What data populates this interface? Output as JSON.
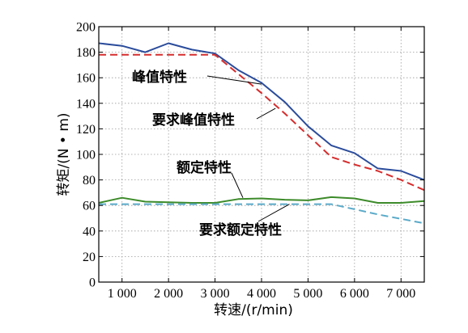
{
  "chart_data": {
    "type": "line",
    "title": "",
    "xlabel": "转速/(r/min)",
    "ylabel": "转矩/(N • m)",
    "xlim": [
      500,
      7500
    ],
    "ylim": [
      0,
      200
    ],
    "x_ticks": [
      1000,
      2000,
      3000,
      4000,
      5000,
      6000,
      7000
    ],
    "x_tick_labels": [
      "1 000",
      "2 000",
      "3 000",
      "4 000",
      "5 000",
      "6 000",
      "7 000"
    ],
    "y_ticks": [
      0,
      20,
      40,
      60,
      80,
      100,
      120,
      140,
      160,
      180,
      200
    ],
    "y_tick_labels": [
      "0",
      "20",
      "40",
      "60",
      "80",
      "100",
      "120",
      "140",
      "160",
      "180",
      "200"
    ],
    "grid": true,
    "series": [
      {
        "name": "峰值特性",
        "color": "#2b4c9b",
        "dash": "solid",
        "points": [
          [
            500,
            187
          ],
          [
            1000,
            185
          ],
          [
            1500,
            180
          ],
          [
            2000,
            187
          ],
          [
            2500,
            182
          ],
          [
            3000,
            179
          ],
          [
            3500,
            166
          ],
          [
            4000,
            156
          ],
          [
            4500,
            141
          ],
          [
            5000,
            122
          ],
          [
            5500,
            107
          ],
          [
            6000,
            101
          ],
          [
            6500,
            89
          ],
          [
            7000,
            87
          ],
          [
            7500,
            80
          ]
        ]
      },
      {
        "name": "要求峰值特性",
        "color": "#d62d2d",
        "dash": "dashed",
        "points": [
          [
            500,
            178
          ],
          [
            3000,
            178
          ],
          [
            3500,
            163
          ],
          [
            4000,
            148
          ],
          [
            4500,
            132
          ],
          [
            5000,
            115
          ],
          [
            5500,
            98
          ],
          [
            6000,
            92
          ],
          [
            6500,
            87
          ],
          [
            7000,
            80
          ],
          [
            7500,
            72
          ]
        ]
      },
      {
        "name": "额定特性",
        "color": "#3d8b2a",
        "dash": "solid",
        "points": [
          [
            500,
            62
          ],
          [
            1000,
            66
          ],
          [
            1500,
            63
          ],
          [
            2000,
            62.5
          ],
          [
            2500,
            62
          ],
          [
            3000,
            62
          ],
          [
            3500,
            65
          ],
          [
            4000,
            65.5
          ],
          [
            4500,
            64.5
          ],
          [
            5000,
            64
          ],
          [
            5500,
            66.5
          ],
          [
            6000,
            65.5
          ],
          [
            6500,
            62
          ],
          [
            7000,
            62
          ],
          [
            7500,
            63.5
          ]
        ]
      },
      {
        "name": "要求额定特性",
        "color": "#5aaac9",
        "dash": "dashed",
        "points": [
          [
            500,
            61
          ],
          [
            5500,
            61
          ],
          [
            6000,
            57
          ],
          [
            6500,
            53
          ],
          [
            7000,
            49.5
          ],
          [
            7500,
            46
          ]
        ]
      }
    ],
    "annotations": [
      {
        "text": "峰值特性",
        "series": 0,
        "point": [
          4000,
          155
        ]
      },
      {
        "text": "要求峰值特性",
        "series": 1,
        "point": [
          4300,
          136
        ]
      },
      {
        "text": "额定特性",
        "series": 2,
        "point": [
          3600,
          66
        ]
      },
      {
        "text": "要求额定特性",
        "series": 3,
        "point": [
          4600,
          61
        ]
      }
    ]
  }
}
